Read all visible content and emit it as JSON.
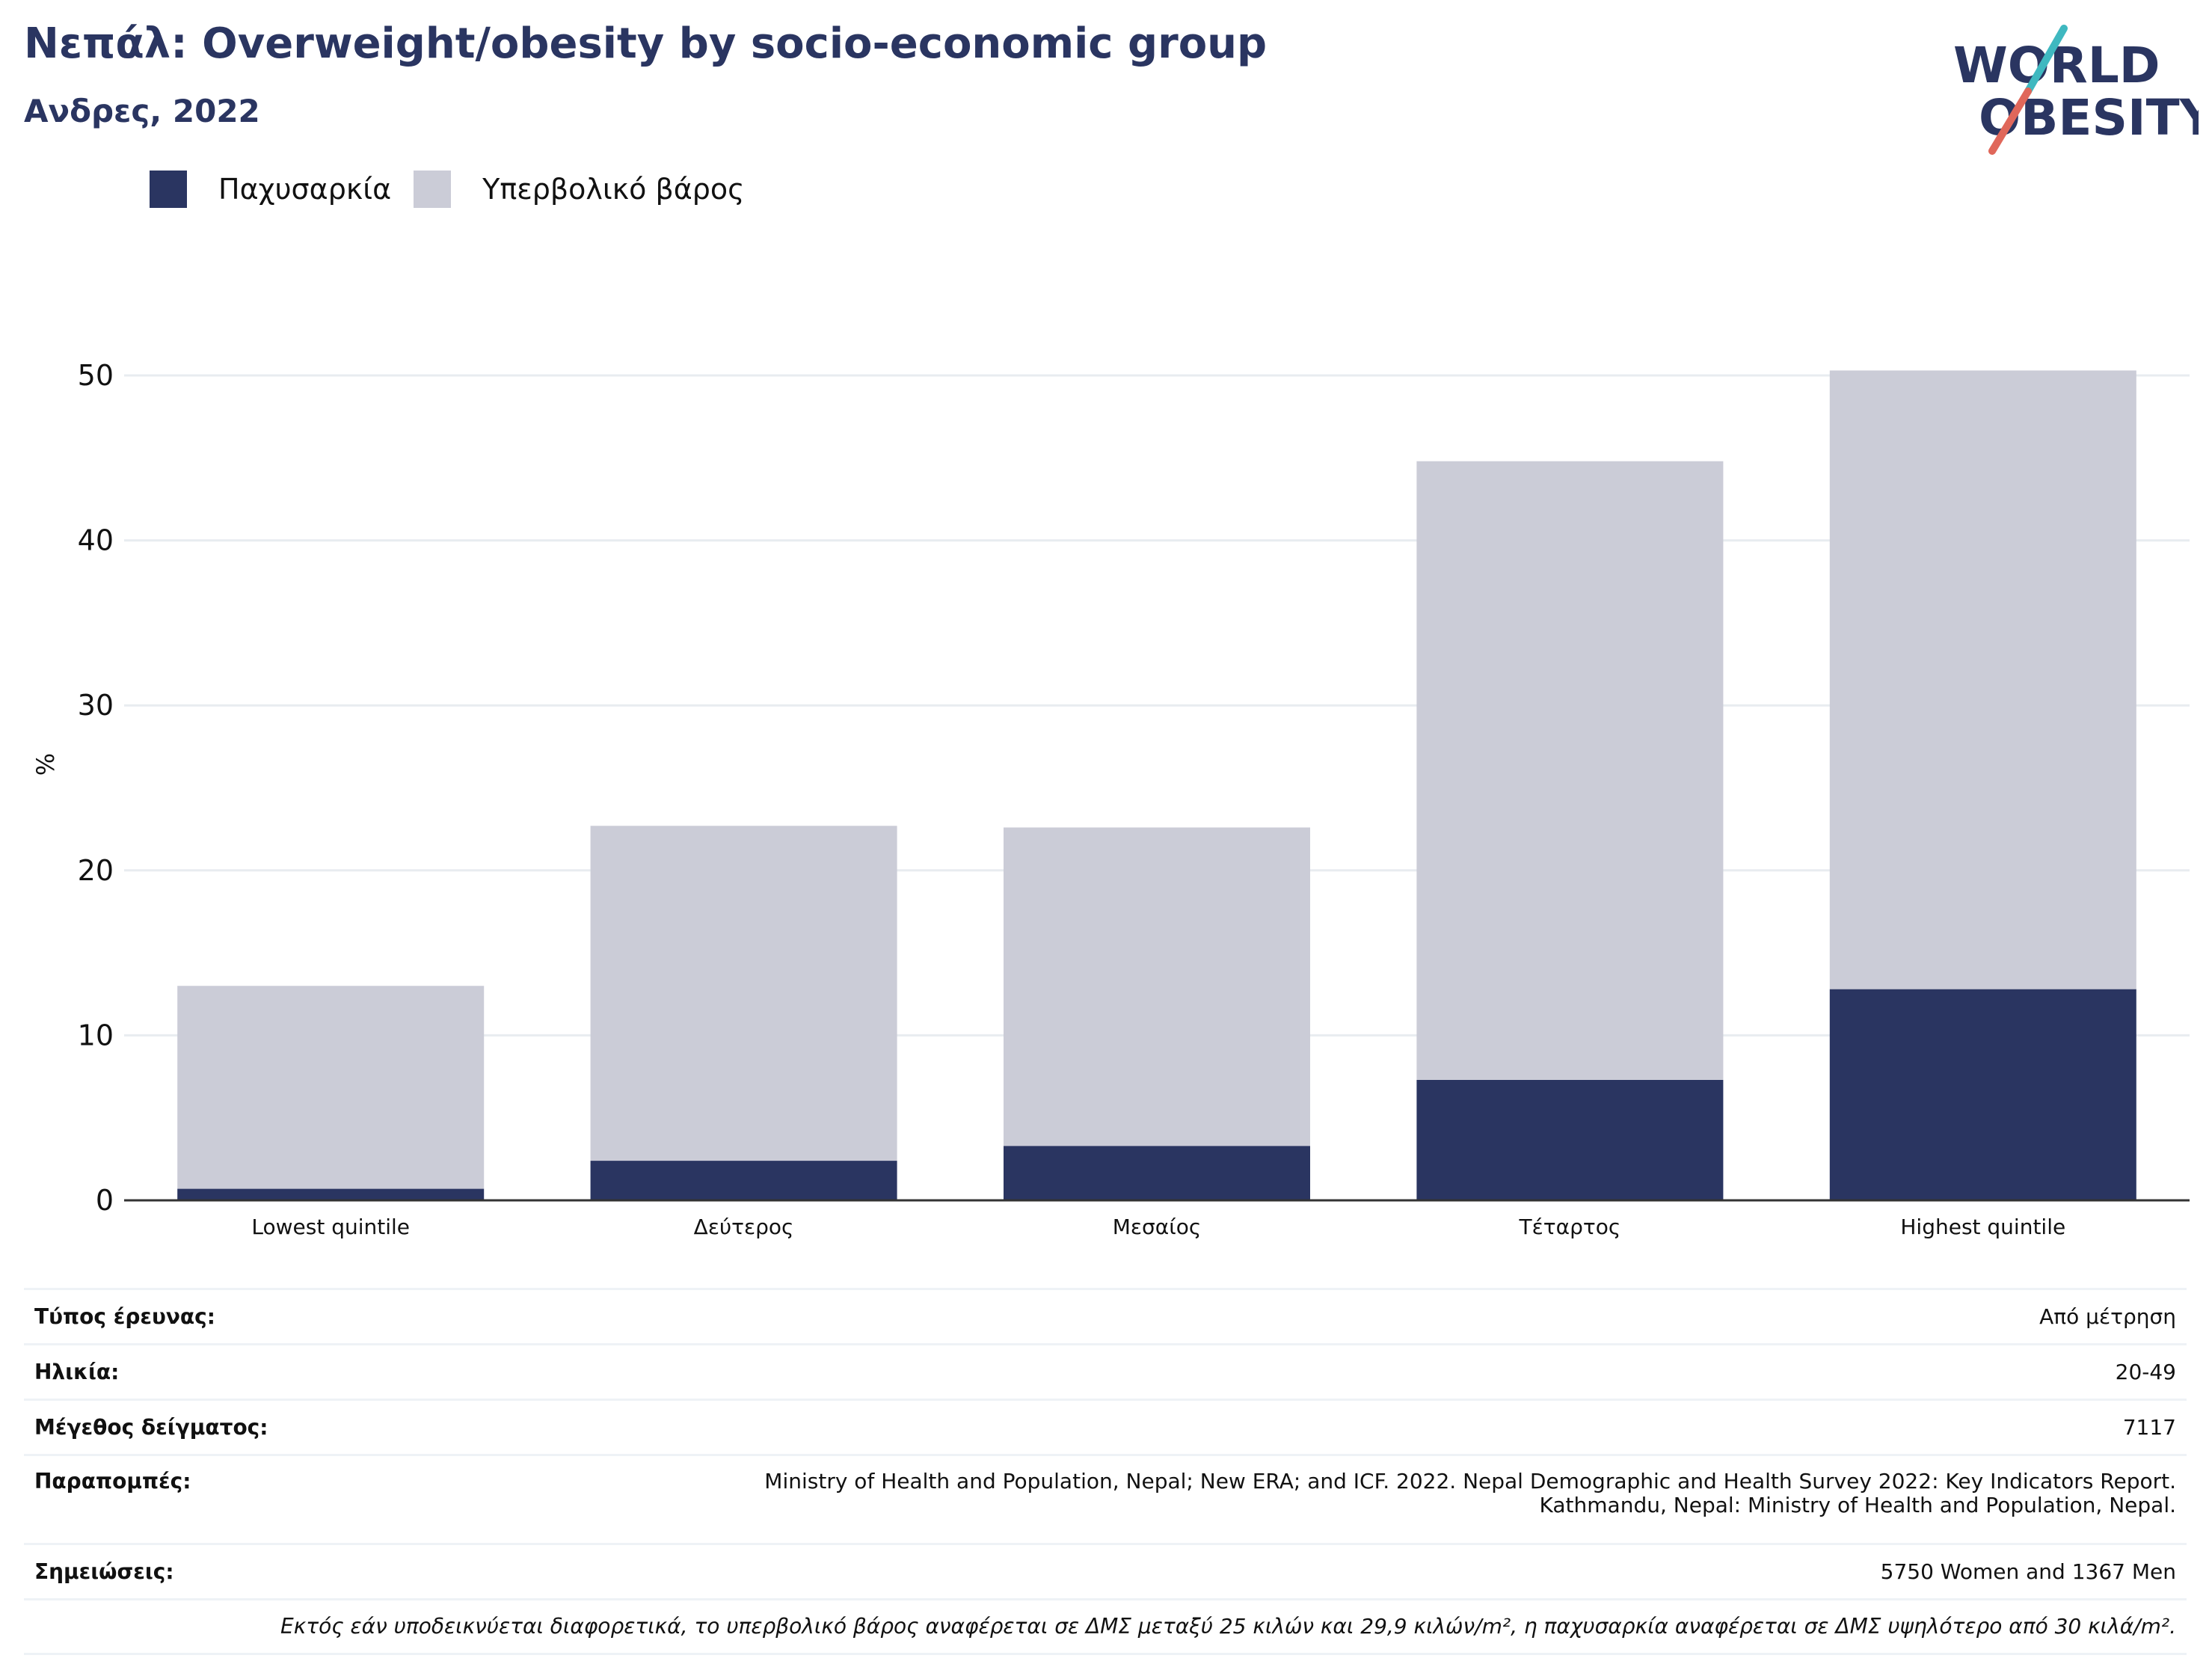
{
  "header": {
    "title": "Νεπάλ: Overweight/obesity by socio-economic group",
    "subtitle": "Ανδρες, 2022"
  },
  "logo": {
    "line1": "WORLD",
    "line2": "OBESITY"
  },
  "legend": {
    "obesity": "Παχυσαρκία",
    "overweight": "Υπερβολικό βάρος"
  },
  "colors": {
    "obesity": "#2a3561",
    "overweight": "#cbccd7",
    "grid": "#e8ecf0",
    "axis": "#333333"
  },
  "chart_data": {
    "type": "bar",
    "stacked": true,
    "categories": [
      "Lowest quintile",
      "Δεύτερος",
      "Μεσαίος",
      "Τέταρτος",
      "Highest quintile"
    ],
    "series": [
      {
        "name": "Παχυσαρκία",
        "values": [
          0.7,
          2.4,
          3.3,
          7.3,
          12.8
        ]
      },
      {
        "name": "Υπερβολικό βάρος",
        "values": [
          12.3,
          20.3,
          19.3,
          37.5,
          37.5
        ]
      }
    ],
    "ylabel": "%",
    "ylim": [
      0,
      50
    ],
    "yticks": [
      0,
      10,
      20,
      30,
      40,
      50
    ],
    "grid": true
  },
  "meta": {
    "survey_type": {
      "label": "Τύπος έρευνας:",
      "value": "Από μέτρηση"
    },
    "age": {
      "label": "Ηλικία:",
      "value": "20-49"
    },
    "sample_size": {
      "label": "Μέγεθος δείγματος:",
      "value": "7117"
    },
    "references": {
      "label": "Παραπομπές:",
      "line1": "Ministry of Health and Population, Nepal; New ERA; and ICF. 2022. Nepal Demographic and Health Survey 2022: Key Indicators Report.",
      "line2": "Kathmandu, Nepal: Ministry of Health and Population, Nepal."
    },
    "notes": {
      "label": "Σημειώσεις:",
      "value": "5750 Women and 1367 Men"
    },
    "footnote": "Εκτός εάν υποδεικνύεται διαφορετικά, το υπερβολικό βάρος αναφέρεται σε ΔΜΣ μεταξύ 25 κιλών και 29,9 κιλών/m², η παχυσαρκία αναφέρεται σε ΔΜΣ υψηλότερο από 30 κιλά/m²."
  }
}
